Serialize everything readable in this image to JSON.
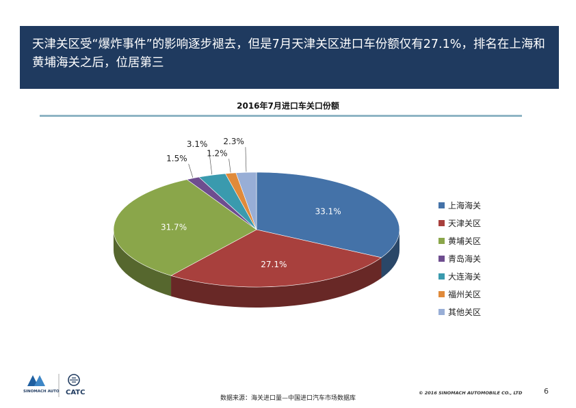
{
  "header": {
    "title": "天津关区受“爆炸事件”的影响逐步褪去，但是7月天津关区进口车份额仅有27.1%，排名在上海和黄埔海关之后，位居第三"
  },
  "chart_data": {
    "type": "pie",
    "title": "2016年7月进口车关口份额",
    "unit": "%",
    "slices": [
      {
        "name": "上海海关",
        "value": 33.1,
        "label": "33.1%",
        "color": "#4472a8"
      },
      {
        "name": "天津关区",
        "value": 27.1,
        "label": "27.1%",
        "color": "#a8403d"
      },
      {
        "name": "黄埔关区",
        "value": 31.7,
        "label": "31.7%",
        "color": "#8aa64a"
      },
      {
        "name": "青岛海关",
        "value": 1.5,
        "label": "1.5%",
        "color": "#6e4d8f"
      },
      {
        "name": "大连海关",
        "value": 3.1,
        "label": "3.1%",
        "color": "#3a9aae"
      },
      {
        "name": "福州关区",
        "value": 1.2,
        "label": "1.2%",
        "color": "#e08a3a"
      },
      {
        "name": "其他关区",
        "value": 2.3,
        "label": "2.3%",
        "color": "#98aed6"
      }
    ],
    "legend_position": "right"
  },
  "footer": {
    "source": "数据来源：海关进口量—中国进口汽车市场数据库",
    "copyright": "© 2016 SINOMACH AUTOMOBILE CO., LTD",
    "page_number": "6",
    "logo_left_text": "SINOMACH AUTO",
    "logo_right_text": "CATC"
  }
}
